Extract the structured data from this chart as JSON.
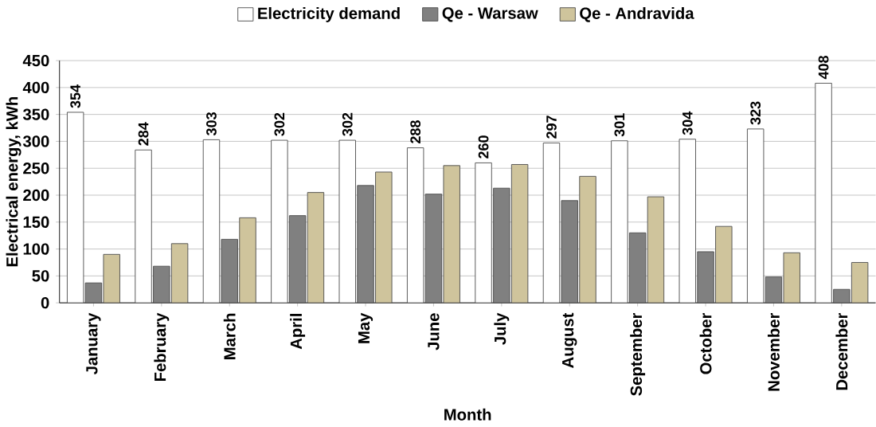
{
  "chart_data": {
    "type": "bar",
    "xlabel": "Month",
    "ylabel": "Electrical energy, kWh",
    "categories": [
      "January",
      "February",
      "March",
      "April",
      "May",
      "June",
      "July",
      "August",
      "September",
      "October",
      "November",
      "December"
    ],
    "series": [
      {
        "name": "Electricity demand",
        "color": "#ffffff",
        "values": [
          354,
          284,
          303,
          302,
          302,
          288,
          260,
          297,
          301,
          304,
          323,
          408
        ],
        "value_labels": [
          "354",
          "284",
          "303",
          "302",
          "302",
          "288",
          "260",
          "297",
          "301",
          "304",
          "323",
          "408"
        ]
      },
      {
        "name": "Qe - Warsaw",
        "color": "#808080",
        "values": [
          37,
          68,
          118,
          162,
          218,
          202,
          213,
          190,
          130,
          95,
          48,
          25
        ]
      },
      {
        "name": "Qe - Andravida",
        "color": "#cfc49c",
        "values": [
          90,
          110,
          158,
          205,
          243,
          255,
          257,
          235,
          197,
          142,
          93,
          75
        ]
      }
    ],
    "ylim": [
      0,
      450
    ],
    "yticks": [
      0,
      50,
      100,
      150,
      200,
      250,
      300,
      350,
      400,
      450
    ],
    "grid": "y",
    "legend": "top"
  }
}
